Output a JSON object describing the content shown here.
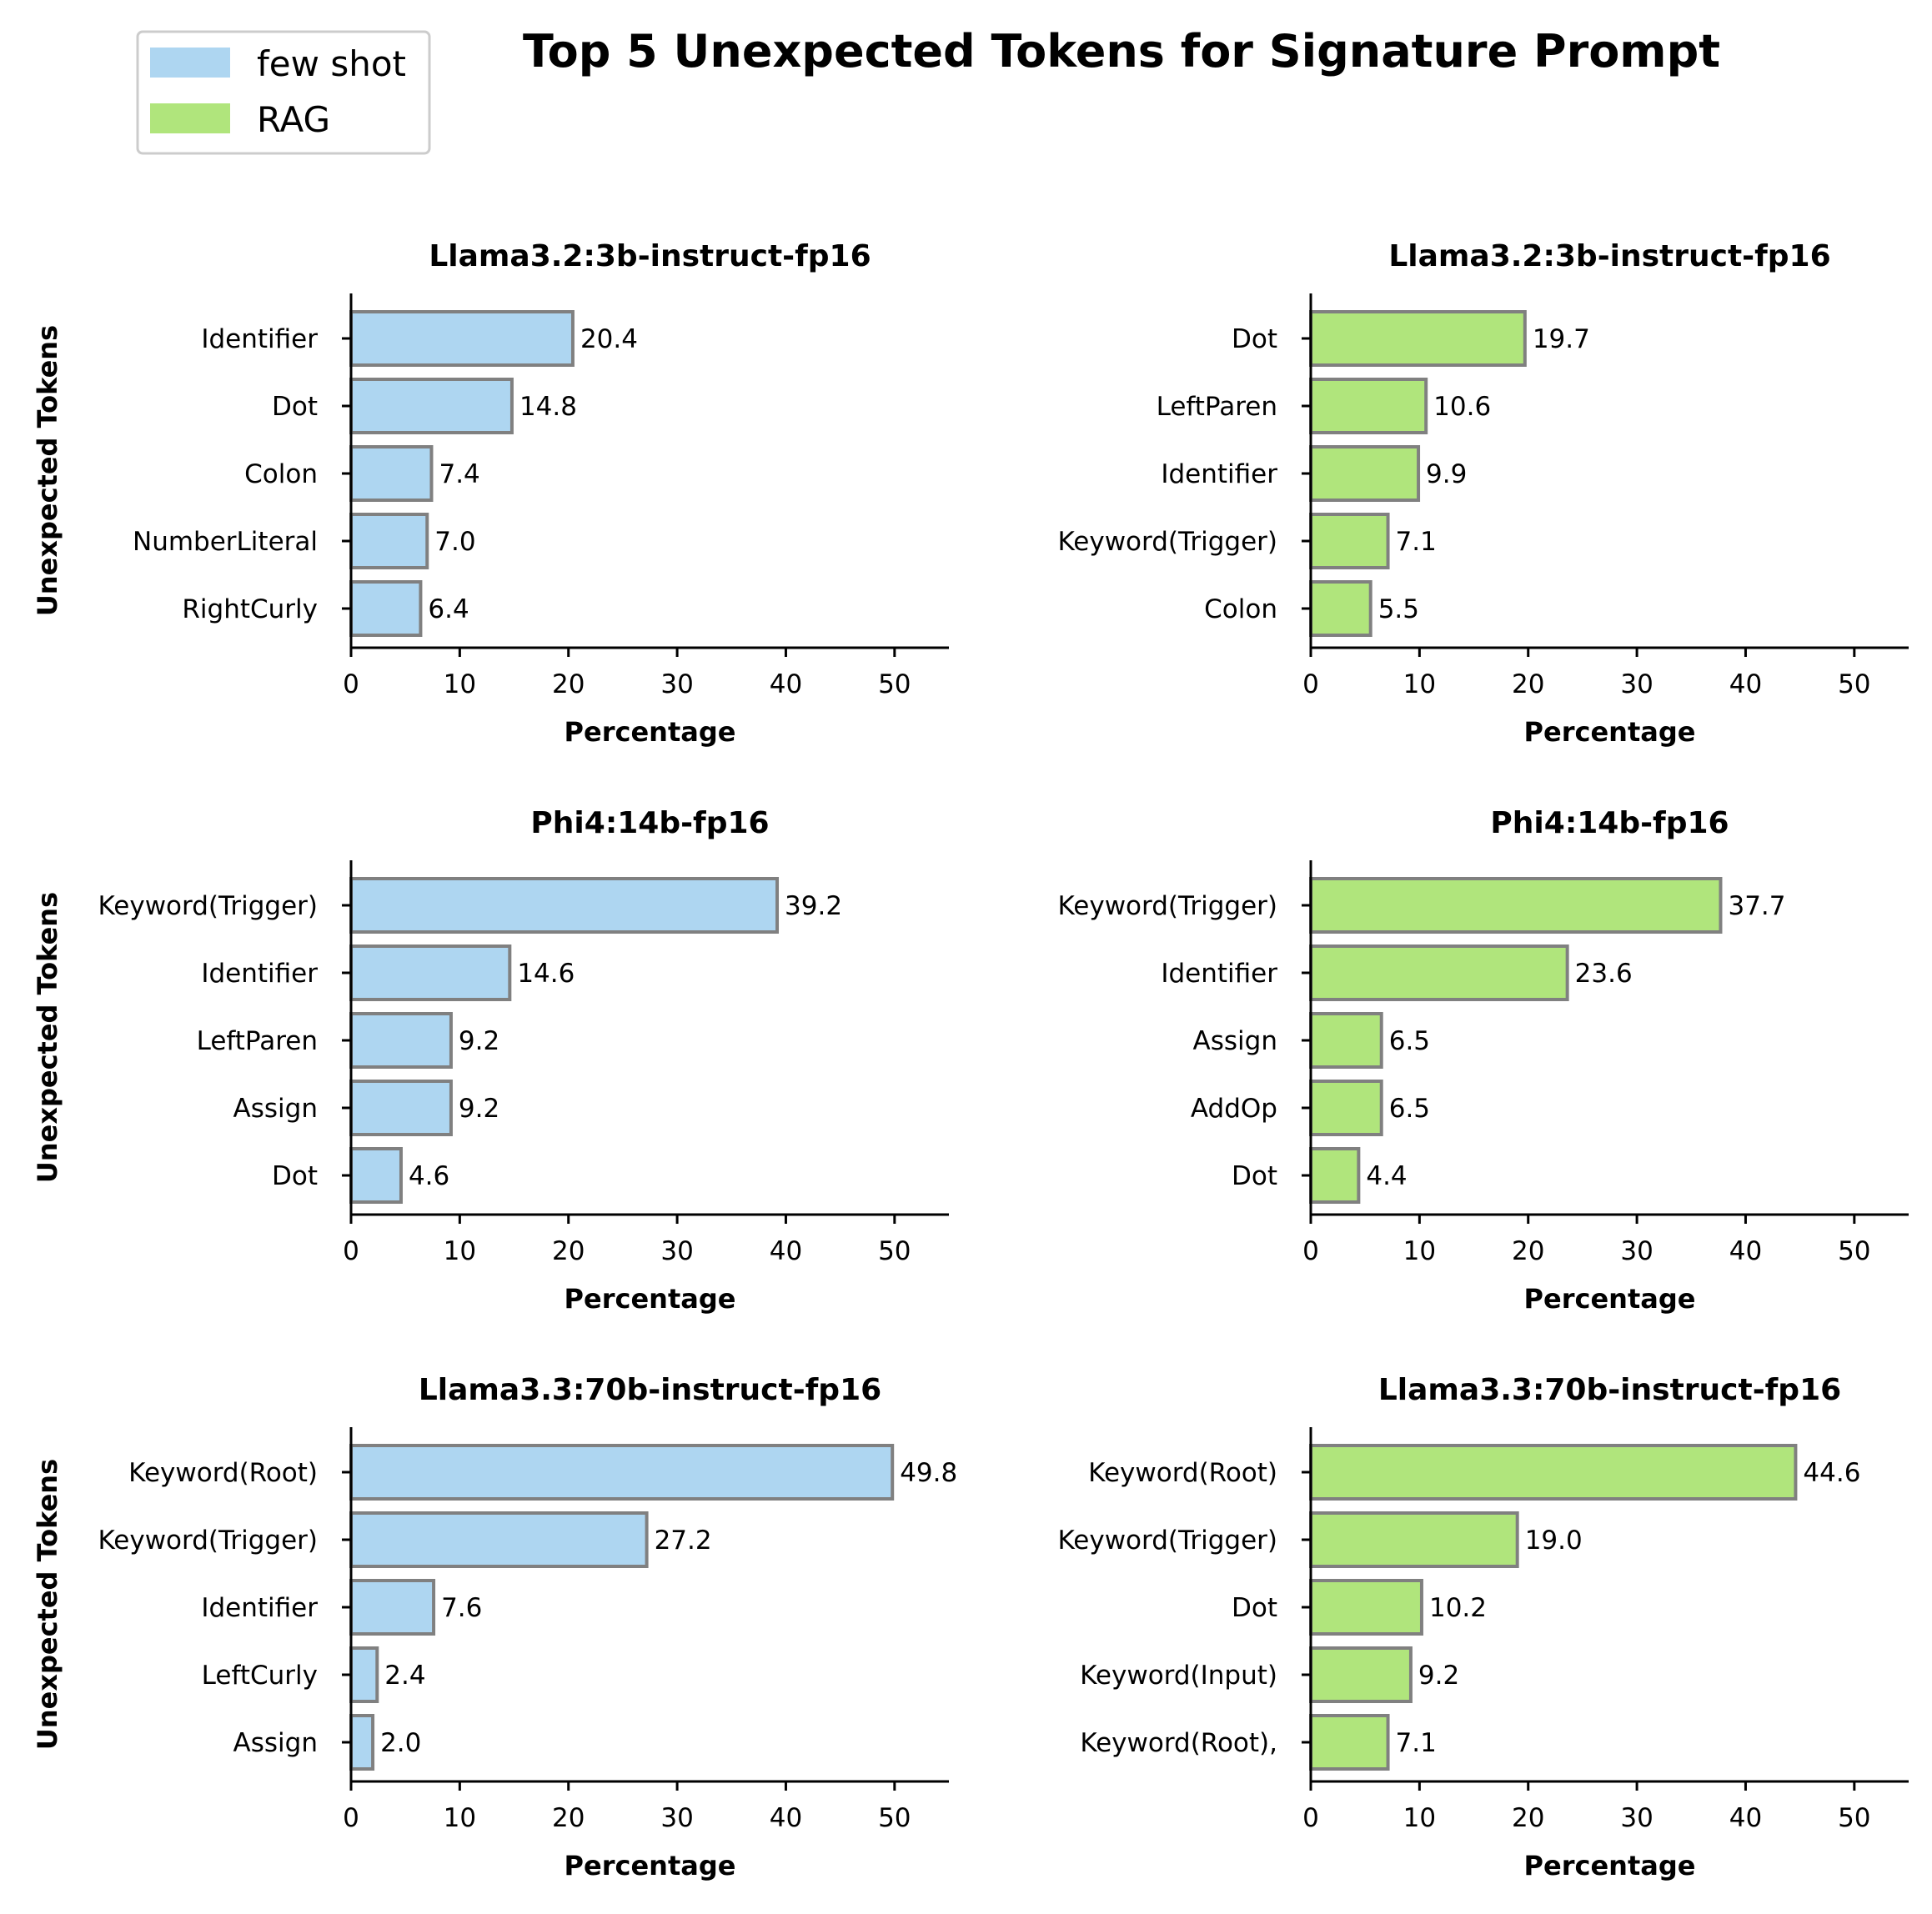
{
  "title": "Top 5 Unexpected Tokens for Signature Prompt",
  "legend": {
    "placement": "top-left",
    "items": [
      {
        "label": "few shot",
        "color": "#aed6f1"
      },
      {
        "label": "RAG",
        "color": "#b0e57c"
      }
    ]
  },
  "bar_edge_color": "#808080",
  "chart_data": [
    {
      "type": "bar",
      "orientation": "horizontal",
      "series": "few shot",
      "color": "#aed6f1",
      "title": "Llama3.2:3b-instruct-fp16",
      "xlabel": "Percentage",
      "ylabel": "Unexpected Tokens",
      "categories": [
        "Identifier",
        "Dot",
        "Colon",
        "NumberLiteral",
        "RightCurly"
      ],
      "values": [
        20.4,
        14.8,
        7.4,
        7.0,
        6.4
      ],
      "value_labels": [
        "20.4",
        "14.8",
        "7.4",
        "7.0",
        "6.4"
      ],
      "xlim": [
        0,
        55
      ],
      "xticks": [
        "0",
        "10",
        "20",
        "30",
        "40",
        "50"
      ]
    },
    {
      "type": "bar",
      "orientation": "horizontal",
      "series": "RAG",
      "color": "#b0e57c",
      "title": "Llama3.2:3b-instruct-fp16",
      "xlabel": "Percentage",
      "ylabel": "",
      "categories": [
        "Dot",
        "LeftParen",
        "Identifier",
        "Keyword(Trigger)",
        "Colon"
      ],
      "values": [
        19.7,
        10.6,
        9.9,
        7.1,
        5.5
      ],
      "value_labels": [
        "19.7",
        "10.6",
        "9.9",
        "7.1",
        "5.5"
      ],
      "xlim": [
        0,
        55
      ],
      "xticks": [
        "0",
        "10",
        "20",
        "30",
        "40",
        "50"
      ]
    },
    {
      "type": "bar",
      "orientation": "horizontal",
      "series": "few shot",
      "color": "#aed6f1",
      "title": "Phi4:14b-fp16",
      "xlabel": "Percentage",
      "ylabel": "Unexpected Tokens",
      "categories": [
        "Keyword(Trigger)",
        "Identifier",
        "LeftParen",
        "Assign",
        "Dot"
      ],
      "values": [
        39.2,
        14.6,
        9.2,
        9.2,
        4.6
      ],
      "value_labels": [
        "39.2",
        "14.6",
        "9.2",
        "9.2",
        "4.6"
      ],
      "xlim": [
        0,
        55
      ],
      "xticks": [
        "0",
        "10",
        "20",
        "30",
        "40",
        "50"
      ]
    },
    {
      "type": "bar",
      "orientation": "horizontal",
      "series": "RAG",
      "color": "#b0e57c",
      "title": "Phi4:14b-fp16",
      "xlabel": "Percentage",
      "ylabel": "",
      "categories": [
        "Keyword(Trigger)",
        "Identifier",
        "Assign",
        "AddOp",
        "Dot"
      ],
      "values": [
        37.7,
        23.6,
        6.5,
        6.5,
        4.4
      ],
      "value_labels": [
        "37.7",
        "23.6",
        "6.5",
        "6.5",
        "4.4"
      ],
      "xlim": [
        0,
        55
      ],
      "xticks": [
        "0",
        "10",
        "20",
        "30",
        "40",
        "50"
      ]
    },
    {
      "type": "bar",
      "orientation": "horizontal",
      "series": "few shot",
      "color": "#aed6f1",
      "title": "Llama3.3:70b-instruct-fp16",
      "xlabel": "Percentage",
      "ylabel": "Unexpected Tokens",
      "categories": [
        "Keyword(Root)",
        "Keyword(Trigger)",
        "Identifier",
        "LeftCurly",
        "Assign"
      ],
      "values": [
        49.8,
        27.2,
        7.6,
        2.4,
        2.0
      ],
      "value_labels": [
        "49.8",
        "27.2",
        "7.6",
        "2.4",
        "2.0"
      ],
      "xlim": [
        0,
        55
      ],
      "xticks": [
        "0",
        "10",
        "20",
        "30",
        "40",
        "50"
      ]
    },
    {
      "type": "bar",
      "orientation": "horizontal",
      "series": "RAG",
      "color": "#b0e57c",
      "title": "Llama3.3:70b-instruct-fp16",
      "xlabel": "Percentage",
      "ylabel": "",
      "categories": [
        "Keyword(Root)",
        "Keyword(Trigger)",
        "Dot",
        "Keyword(Input)",
        "Keyword(Root),"
      ],
      "values": [
        44.6,
        19.0,
        10.2,
        9.2,
        7.1
      ],
      "value_labels": [
        "44.6",
        "19.0",
        "10.2",
        "9.2",
        "7.1"
      ],
      "xlim": [
        0,
        55
      ],
      "xticks": [
        "0",
        "10",
        "20",
        "30",
        "40",
        "50"
      ]
    }
  ]
}
